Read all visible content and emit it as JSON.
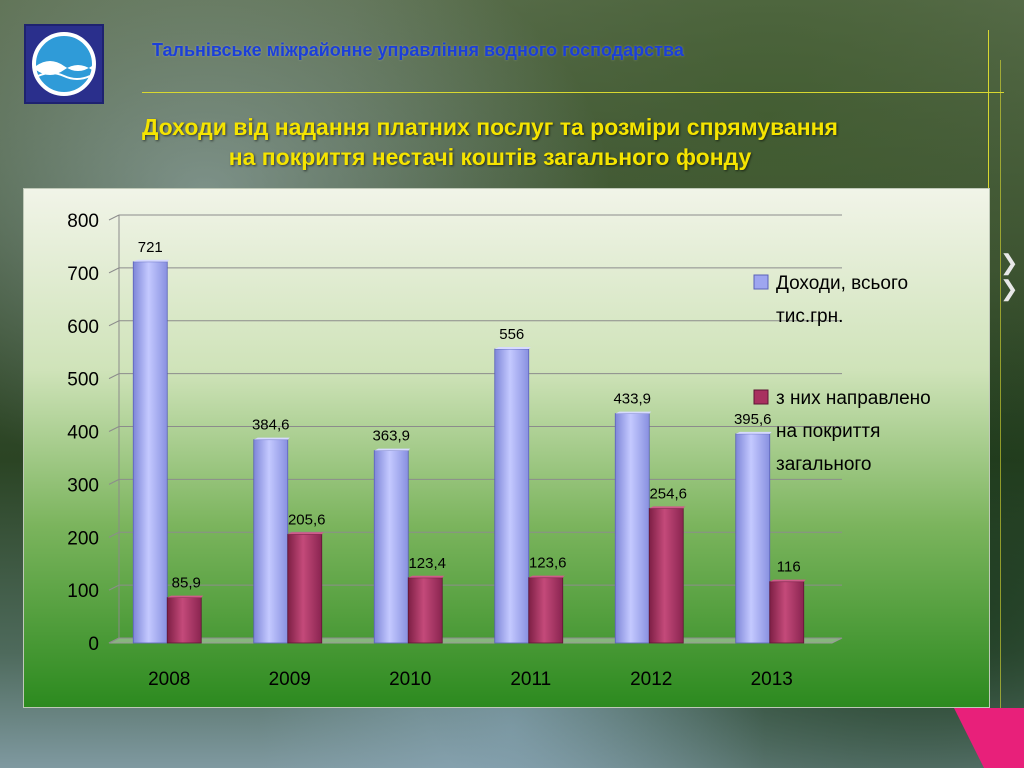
{
  "header": {
    "org_title": "Тальнівське міжрайонне управління водного господарства",
    "slide_title_line1": "Доходи від надання платних послуг та розміри спрямування",
    "slide_title_line2": "на покриття нестачі  коштів загального фонду"
  },
  "colors": {
    "accent_yellow": "#f5e400",
    "org_title_blue": "#1b3fd8",
    "series_income": "#9ea6f0",
    "series_directed": "#a8305f",
    "nav_pink": "#e8207a"
  },
  "icons": {
    "logo": "water-wave-logo-icon",
    "nav": "chevron-right-icon"
  },
  "chart_data": {
    "type": "bar",
    "categories": [
      "2008",
      "2009",
      "2010",
      "2011",
      "2012",
      "2013"
    ],
    "series": [
      {
        "name": "Доходи, всього тис.грн.",
        "values": [
          721,
          384.6,
          363.9,
          556,
          433.9,
          395.6
        ],
        "labels": [
          "721",
          "384,6",
          "363,9",
          "556",
          "433,9",
          "395,6"
        ],
        "color": "#9ea6f0"
      },
      {
        "name": "з них направлено на покриття загального",
        "values": [
          85.9,
          205.6,
          123.4,
          123.6,
          254.6,
          116
        ],
        "labels": [
          "85,9",
          "205,6",
          "123,4",
          "123,6",
          "254,6",
          "116"
        ],
        "color": "#a8305f"
      }
    ],
    "legend_lines": [
      [
        "Доходи, всього",
        "тис.грн."
      ],
      [
        "з них направлено",
        "на покриття",
        "загального"
      ]
    ],
    "yticks": [
      "0",
      "100",
      "200",
      "300",
      "400",
      "500",
      "600",
      "700",
      "800"
    ],
    "ylim": [
      0,
      800
    ],
    "grid": true,
    "legend_position": "right",
    "title": "",
    "xlabel": "",
    "ylabel": ""
  }
}
